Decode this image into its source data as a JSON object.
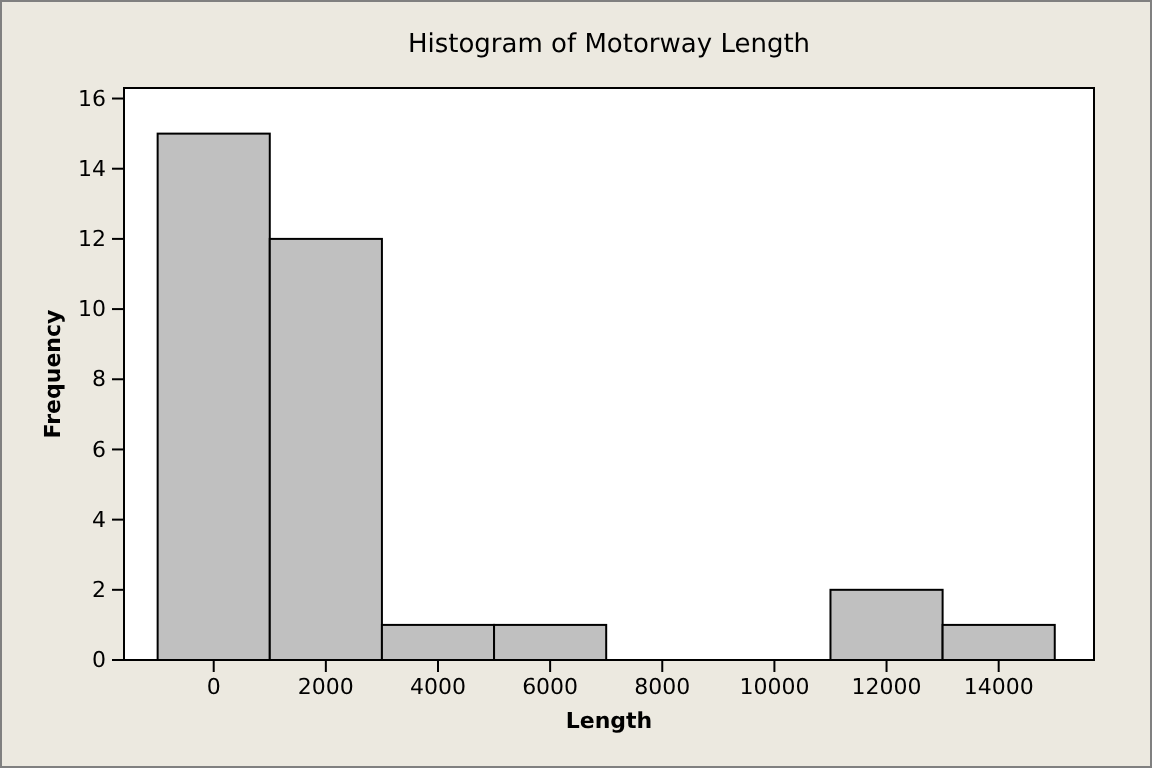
{
  "chart_data": {
    "type": "histogram",
    "title": "Histogram of Motorway Length",
    "xlabel": "Length",
    "ylabel": "Frequency",
    "bins": [
      -1000,
      1000,
      3000,
      5000,
      7000,
      9000,
      11000,
      13000,
      15000
    ],
    "values": [
      15,
      12,
      1,
      1,
      0,
      0,
      2,
      1
    ],
    "color": "#c0c0c0",
    "xlim": [
      -1600,
      15700
    ],
    "xticks": [
      0,
      2000,
      4000,
      6000,
      8000,
      10000,
      12000,
      14000
    ],
    "ylim": [
      0,
      16.3
    ],
    "yticks": [
      0,
      2,
      4,
      6,
      8,
      10,
      12,
      14,
      16
    ],
    "grid": false
  }
}
